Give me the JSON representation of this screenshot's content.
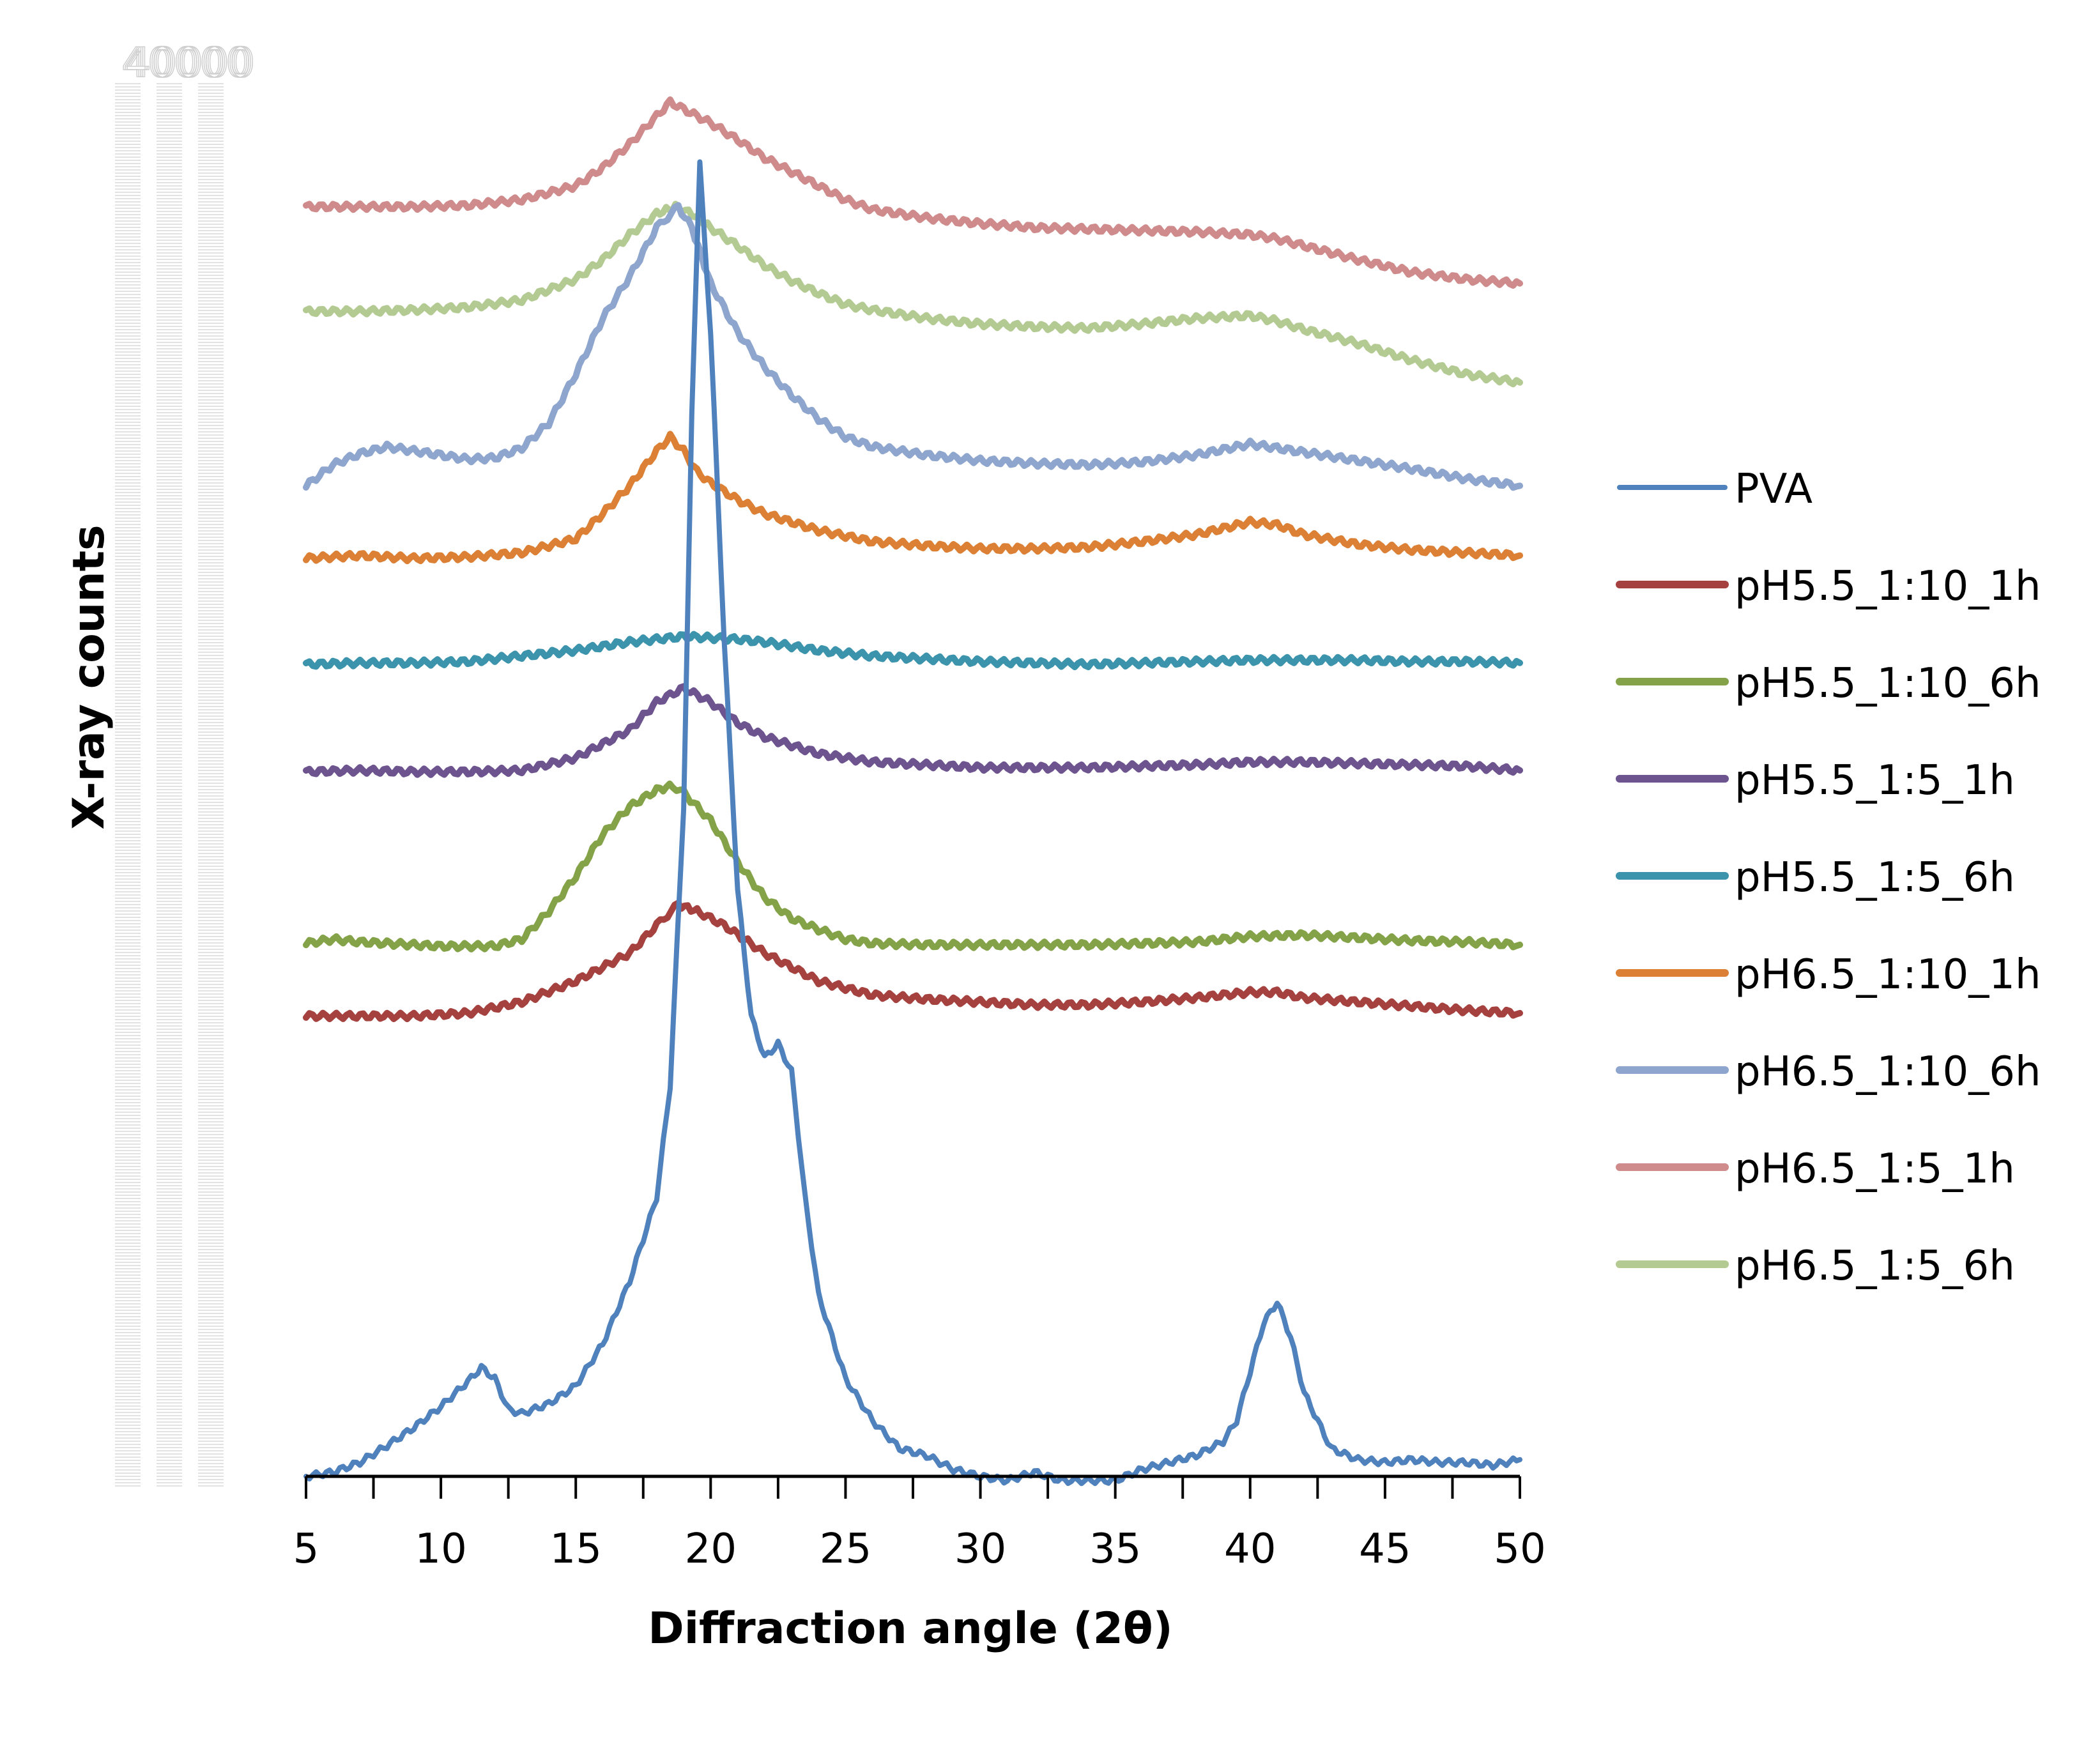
{
  "chart_data": {
    "type": "line",
    "title": "",
    "xlabel": "Diffraction angle (2θ)",
    "ylabel": "X-ray counts",
    "xlim": [
      5,
      50
    ],
    "ylim": [
      0,
      1000
    ],
    "xticks": [
      "5",
      "10",
      "15",
      "20",
      "25",
      "30",
      "35",
      "40",
      "45",
      "50"
    ],
    "ghost_ytick_label": "40000",
    "grid": false,
    "legend_position": "right",
    "note": "Y values are relative stacked-offset intensities (no numeric y ticks shown)",
    "series": [
      {
        "name": "PVA",
        "color": "#4f81bd",
        "width": 8,
        "x": [
          5,
          6,
          7,
          8,
          9,
          10,
          11,
          11.5,
          12,
          12.5,
          13,
          14,
          15,
          16,
          17,
          18,
          18.5,
          19,
          19.3,
          19.6,
          20,
          20.5,
          21,
          21.5,
          22,
          22.5,
          23,
          23.5,
          24,
          25,
          26,
          27,
          28,
          29,
          30,
          31,
          32,
          33,
          34,
          35,
          36,
          37,
          38,
          39,
          39.5,
          40,
          40.5,
          41,
          41.5,
          42,
          43,
          44,
          45,
          46,
          47,
          48,
          49,
          50
        ],
        "y": [
          0,
          3,
          10,
          22,
          35,
          50,
          68,
          78,
          70,
          48,
          45,
          52,
          65,
          95,
          140,
          200,
          280,
          480,
          760,
          940,
          820,
          600,
          420,
          330,
          300,
          310,
          290,
          200,
          130,
          70,
          40,
          20,
          15,
          5,
          0,
          -3,
          3,
          -3,
          -3,
          -3,
          5,
          10,
          15,
          25,
          40,
          75,
          110,
          125,
          100,
          60,
          20,
          12,
          10,
          12,
          10,
          10,
          8,
          12
        ]
      },
      {
        "name": "pH5.5_1:10_1h",
        "color": "#a5413e",
        "width": 10,
        "x": [
          5,
          7,
          9,
          11,
          13,
          15,
          17,
          18,
          18.8,
          19.5,
          20.5,
          22,
          24,
          26,
          28,
          30,
          32,
          34,
          36,
          38,
          40,
          41,
          42,
          44,
          46,
          48,
          50
        ],
        "y": [
          330,
          330,
          330,
          332,
          340,
          355,
          375,
          395,
          410,
          405,
          395,
          375,
          355,
          345,
          342,
          340,
          338,
          338,
          340,
          343,
          347,
          347,
          343,
          340,
          337,
          334,
          332
        ]
      },
      {
        "name": "pH5.5_1:10_6h",
        "color": "#84a349",
        "width": 10,
        "x": [
          5,
          6,
          7,
          8,
          9,
          10,
          11,
          12,
          13,
          14,
          15,
          16,
          17,
          18,
          18.6,
          19,
          20,
          21,
          22,
          23,
          24,
          25,
          26,
          28,
          30,
          32,
          34,
          36,
          38,
          40,
          42,
          44,
          46,
          48,
          50
        ],
        "y": [
          382,
          385,
          383,
          382,
          381,
          380,
          380,
          380,
          385,
          405,
          430,
          460,
          480,
          492,
          495,
          490,
          470,
          440,
          415,
          400,
          392,
          385,
          382,
          381,
          381,
          381,
          381,
          382,
          383,
          387,
          388,
          386,
          384,
          383,
          381
        ]
      },
      {
        "name": "pH5.5_1:5_1h",
        "color": "#6d548f",
        "width": 10,
        "x": [
          5,
          7,
          9,
          11,
          13,
          15,
          17,
          18,
          19,
          20,
          21,
          22,
          24,
          26,
          28,
          30,
          32,
          34,
          36,
          38,
          40,
          42,
          44,
          46,
          48,
          50
        ],
        "y": [
          505,
          506,
          505,
          505,
          506,
          515,
          535,
          555,
          565,
          555,
          540,
          530,
          518,
          512,
          510,
          508,
          508,
          508,
          509,
          510,
          512,
          512,
          511,
          510,
          509,
          506
        ]
      },
      {
        "name": "pH5.5_1:5_6h",
        "color": "#3c93ac",
        "width": 10,
        "x": [
          5,
          7,
          9,
          11,
          13,
          15,
          17,
          18,
          19,
          20,
          21,
          22,
          24,
          26,
          28,
          30,
          32,
          34,
          36,
          38,
          40,
          42,
          44,
          46,
          48,
          50
        ],
        "y": [
          582,
          583,
          583,
          584,
          588,
          592,
          598,
          600,
          602,
          601,
          600,
          598,
          592,
          588,
          586,
          584,
          583,
          582,
          583,
          584,
          585,
          585,
          585,
          584,
          584,
          583
        ]
      },
      {
        "name": "pH6.5_1:10_1h",
        "color": "#db8035",
        "width": 10,
        "x": [
          5,
          7,
          9,
          11,
          13,
          15,
          16,
          17,
          18,
          18.5,
          19,
          19.5,
          20,
          21,
          22,
          24,
          26,
          28,
          30,
          32,
          34,
          36,
          38,
          40,
          41,
          42,
          44,
          46,
          48,
          50
        ],
        "y": [
          658,
          660,
          658,
          659,
          662,
          672,
          690,
          710,
          735,
          745,
          735,
          720,
          712,
          700,
          690,
          678,
          670,
          667,
          665,
          665,
          666,
          670,
          675,
          684,
          682,
          675,
          668,
          664,
          662,
          660
        ]
      },
      {
        "name": "pH6.5_1:10_6h",
        "color": "#8ea6cd",
        "width": 10,
        "x": [
          5,
          6,
          7,
          8,
          9,
          10,
          11,
          12,
          13,
          14,
          15,
          16,
          17,
          18,
          18.8,
          19.3,
          20,
          21,
          22,
          23,
          24,
          25,
          26,
          28,
          30,
          32,
          34,
          36,
          38,
          40,
          41,
          42,
          44,
          46,
          48,
          50
        ],
        "y": [
          710,
          725,
          733,
          738,
          735,
          732,
          729,
          730,
          737,
          755,
          790,
          830,
          860,
          895,
          910,
          895,
          855,
          820,
          795,
          775,
          758,
          745,
          738,
          732,
          728,
          726,
          725,
          727,
          732,
          740,
          737,
          734,
          728,
          722,
          715,
          710
        ]
      },
      {
        "name": "pH6.5_1:5_1h",
        "color": "#cf8b8b",
        "width": 10,
        "x": [
          5,
          7,
          9,
          11,
          13,
          15,
          16,
          17,
          18,
          18.5,
          19,
          20,
          21,
          22,
          23,
          24,
          25,
          26,
          28,
          30,
          32,
          34,
          36,
          38,
          40,
          41,
          42,
          44,
          46,
          48,
          50
        ],
        "y": [
          910,
          910,
          910,
          911,
          915,
          925,
          938,
          955,
          975,
          985,
          980,
          970,
          958,
          945,
          935,
          925,
          915,
          908,
          902,
          898,
          895,
          894,
          893,
          892,
          890,
          887,
          882,
          872,
          863,
          858,
          855
        ]
      },
      {
        "name": "pH6.5_1:5_6h",
        "color": "#b3ca92",
        "width": 10,
        "x": [
          5,
          7,
          9,
          11,
          13,
          15,
          16,
          17,
          18,
          18.7,
          19.3,
          20,
          21,
          22,
          23,
          24,
          25,
          26,
          28,
          30,
          32,
          34,
          36,
          38,
          40,
          41,
          42,
          44,
          46,
          48,
          50
        ],
        "y": [
          835,
          835,
          836,
          838,
          843,
          858,
          872,
          890,
          905,
          910,
          905,
          895,
          882,
          868,
          857,
          848,
          840,
          836,
          830,
          826,
          824,
          823,
          826,
          830,
          832,
          828,
          822,
          812,
          800,
          790,
          784
        ]
      }
    ]
  }
}
